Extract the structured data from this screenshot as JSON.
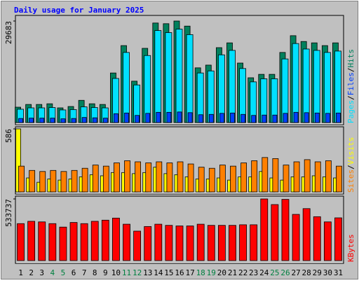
{
  "chart_data": {
    "type": "bar",
    "title": "Daily usage for January 2025",
    "title_color": "#0000ff",
    "legend_separator": "/",
    "categories": [
      "1",
      "2",
      "3",
      "4",
      "5",
      "6",
      "7",
      "8",
      "9",
      "10",
      "11",
      "12",
      "13",
      "14",
      "15",
      "16",
      "17",
      "18",
      "19",
      "20",
      "21",
      "22",
      "23",
      "24",
      "25",
      "26",
      "27",
      "28",
      "29",
      "30",
      "31"
    ],
    "category_colors": [
      "#000000",
      "#000000",
      "#000000",
      "#008040",
      "#008040",
      "#000000",
      "#000000",
      "#000000",
      "#000000",
      "#000000",
      "#008040",
      "#008040",
      "#000000",
      "#000000",
      "#000000",
      "#000000",
      "#000000",
      "#008040",
      "#008040",
      "#000000",
      "#000000",
      "#000000",
      "#000000",
      "#000000",
      "#008040",
      "#008040",
      "#000000",
      "#000000",
      "#000000",
      "#000000",
      "#000000"
    ],
    "panels": [
      {
        "ylim": [
          0,
          29683
        ],
        "yticks": [
          29683
        ],
        "series": [
          {
            "name": "Hits",
            "color": "#00805c",
            "values": [
              4500,
              5300,
              5300,
              5500,
              4300,
              4700,
              6500,
              5500,
              5300,
              14500,
              22500,
              12100,
              21700,
              29100,
              28900,
              29683,
              28200,
              16000,
              16800,
              21900,
              23300,
              17400,
              13100,
              14100,
              14100,
              20500,
              25400,
              23700,
              23300,
              22500,
              23300
            ]
          },
          {
            "name": "Pages",
            "color": "#00e0ff",
            "values": [
              3900,
              4300,
              4300,
              4400,
              3700,
              3800,
              4600,
              4400,
              4300,
              12900,
              20500,
              11000,
              19600,
              26900,
              26300,
              27300,
              25700,
              14500,
              15100,
              19800,
              21100,
              15800,
              11900,
              12800,
              12800,
              18600,
              23100,
              21500,
              21100,
              20500,
              20900
            ]
          },
          {
            "name": "Files",
            "color": "#0040ff",
            "values": [
              1200,
              1300,
              1300,
              1300,
              1100,
              1200,
              1500,
              1400,
              1300,
              2600,
              2800,
              2100,
              2700,
              3000,
              3000,
              3100,
              2900,
              2300,
              2400,
              2700,
              2800,
              2400,
              2100,
              2200,
              2200,
              2700,
              3000,
              2900,
              2800,
              2700,
              2800
            ]
          }
        ],
        "legend_order": [
          1,
          2,
          0
        ]
      },
      {
        "ylim": [
          0,
          586
        ],
        "yticks": [
          586
        ],
        "series": [
          {
            "name": "Visits",
            "color": "#ffff00",
            "values": [
              586,
              130,
              90,
              120,
              110,
              120,
              140,
              160,
              150,
              180,
              180,
              170,
              180,
              230,
              170,
              160,
              140,
              120,
              120,
              130,
              110,
              140,
              140,
              190,
              130,
              110,
              140,
              140,
              150,
              140,
              130
            ]
          },
          {
            "name": "Sites",
            "color": "#ff8000",
            "values": [
              240,
              200,
              190,
              200,
              190,
              200,
              220,
              250,
              240,
              270,
              290,
              280,
              270,
              280,
              270,
              280,
              260,
              230,
              220,
              250,
              240,
              270,
              290,
              320,
              310,
              250,
              280,
              300,
              280,
              290,
              240
            ]
          }
        ],
        "legend_order": [
          1,
          0
        ]
      },
      {
        "ylim": [
          0,
          533737
        ],
        "yticks": [
          533737
        ],
        "series": [
          {
            "name": "KBytes",
            "color": "#ff0000",
            "values": [
              320000,
              340000,
              335000,
              320000,
              290000,
              330000,
              320000,
              340000,
              350000,
              368000,
              315000,
              255000,
              295000,
              315000,
              305000,
              300000,
              300000,
              315000,
              305000,
              305000,
              305000,
              310000,
              310000,
              533737,
              485000,
              530000,
              400000,
              450000,
              380000,
              335000,
              370000
            ]
          }
        ],
        "legend_order": [
          0
        ]
      }
    ]
  }
}
